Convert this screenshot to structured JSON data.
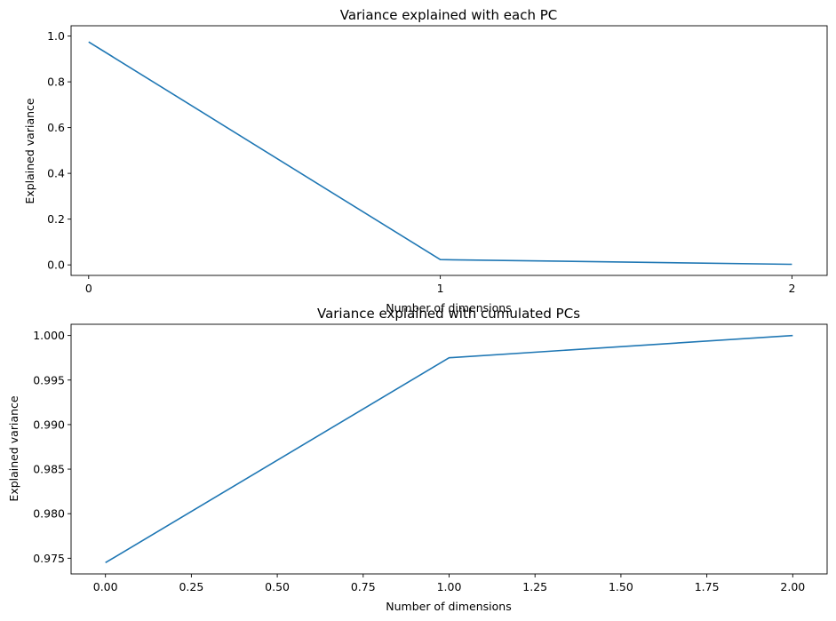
{
  "chart_data": [
    {
      "type": "line",
      "title": "Variance explained with each PC",
      "xlabel": "Number of dimensions",
      "ylabel": "Explained variance",
      "x": [
        0,
        1,
        2
      ],
      "series": [
        {
          "values": [
            0.9745,
            0.023,
            0.0025
          ]
        }
      ],
      "xlim": [
        -0.05,
        2.1
      ],
      "ylim": [
        -0.046,
        1.045
      ],
      "xticks": [
        0,
        1,
        2
      ],
      "xtick_labels": [
        "0",
        "1",
        "2"
      ],
      "yticks": [
        0.0,
        0.2,
        0.4,
        0.6,
        0.8,
        1.0
      ],
      "ytick_labels": [
        "0.0",
        "0.2",
        "0.4",
        "0.6",
        "0.8",
        "1.0"
      ],
      "grid": false,
      "line_color": "#1f77b4"
    },
    {
      "type": "line",
      "title": "Variance explained with cumulated PCs",
      "xlabel": "Number of dimensions",
      "ylabel": "Explained variance",
      "x": [
        0,
        1,
        2
      ],
      "series": [
        {
          "values": [
            0.9745,
            0.9975,
            1.0
          ]
        }
      ],
      "xlim": [
        -0.1,
        2.1
      ],
      "ylim": [
        0.97324,
        1.00126
      ],
      "xticks": [
        0,
        0.25,
        0.5,
        0.75,
        1.0,
        1.25,
        1.5,
        1.75,
        2.0
      ],
      "xtick_labels": [
        "0.00",
        "0.25",
        "0.50",
        "0.75",
        "1.00",
        "1.25",
        "1.50",
        "1.75",
        "2.00"
      ],
      "yticks": [
        0.975,
        0.98,
        0.985,
        0.99,
        0.995,
        1.0
      ],
      "ytick_labels": [
        "0.975",
        "0.980",
        "0.985",
        "0.990",
        "0.995",
        "1.000"
      ],
      "grid": false,
      "line_color": "#1f77b4"
    }
  ]
}
